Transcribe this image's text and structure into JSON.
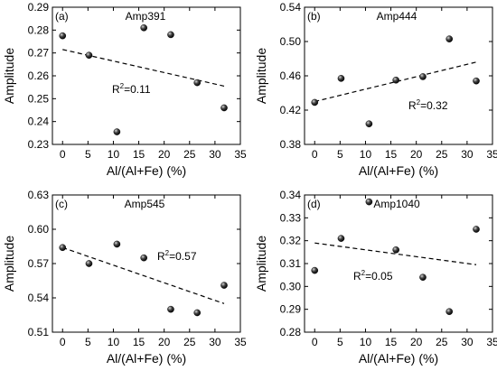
{
  "chart_data": [
    {
      "type": "scatter",
      "panel_label": "(a)",
      "series_name": "Amp391",
      "xlabel": "Al/(Al+Fe) (%)",
      "ylabel": "Amplitude",
      "xlim": [
        -2,
        35
      ],
      "ylim": [
        0.23,
        0.29
      ],
      "xticks": [
        0,
        5,
        10,
        15,
        20,
        25,
        30,
        35
      ],
      "yticks": [
        "0.23",
        "0.24",
        "0.25",
        "0.26",
        "0.27",
        "0.28",
        "0.29"
      ],
      "points": [
        {
          "x": 0,
          "y": 0.2775
        },
        {
          "x": 5.2,
          "y": 0.269
        },
        {
          "x": 10.7,
          "y": 0.2355
        },
        {
          "x": 16,
          "y": 0.281
        },
        {
          "x": 21.3,
          "y": 0.278
        },
        {
          "x": 26.5,
          "y": 0.257
        },
        {
          "x": 31.8,
          "y": 0.246
        }
      ],
      "fit": {
        "x": [
          0,
          31.8
        ],
        "y": [
          0.2715,
          0.2555
        ],
        "style": "dashed"
      },
      "r2_prefix": "R",
      "r2_exp": "2",
      "r2_value": "=0.11"
    },
    {
      "type": "scatter",
      "panel_label": "(b)",
      "series_name": "Amp444",
      "xlabel": "Al/(Al+Fe) (%)",
      "ylabel": "Amplitude",
      "xlim": [
        -2,
        35
      ],
      "ylim": [
        0.38,
        0.54
      ],
      "xticks": [
        0,
        5,
        10,
        15,
        20,
        25,
        30,
        35
      ],
      "yticks": [
        "0.38",
        "0.42",
        "0.46",
        "0.50",
        "0.54"
      ],
      "points": [
        {
          "x": 0,
          "y": 0.429
        },
        {
          "x": 5.2,
          "y": 0.457
        },
        {
          "x": 10.7,
          "y": 0.404
        },
        {
          "x": 16,
          "y": 0.455
        },
        {
          "x": 21.3,
          "y": 0.459
        },
        {
          "x": 26.5,
          "y": 0.503
        },
        {
          "x": 31.8,
          "y": 0.454
        }
      ],
      "fit": {
        "x": [
          0,
          31.8
        ],
        "y": [
          0.43,
          0.476
        ],
        "style": "dashed"
      },
      "r2_prefix": "R",
      "r2_exp": "2",
      "r2_value": "=0.32"
    },
    {
      "type": "scatter",
      "panel_label": "(c)",
      "series_name": "Amp545",
      "xlabel": "Al/(Al+Fe) (%)",
      "ylabel": "Amplitude",
      "xlim": [
        -2,
        35
      ],
      "ylim": [
        0.51,
        0.63
      ],
      "xticks": [
        0,
        5,
        10,
        15,
        20,
        25,
        30,
        35
      ],
      "yticks": [
        "0.51",
        "0.54",
        "0.57",
        "0.60",
        "0.63"
      ],
      "points": [
        {
          "x": 0,
          "y": 0.584
        },
        {
          "x": 5.2,
          "y": 0.57
        },
        {
          "x": 10.7,
          "y": 0.587
        },
        {
          "x": 16,
          "y": 0.575
        },
        {
          "x": 21.3,
          "y": 0.53
        },
        {
          "x": 26.5,
          "y": 0.527
        },
        {
          "x": 31.8,
          "y": 0.551
        }
      ],
      "fit": {
        "x": [
          0,
          31.8
        ],
        "y": [
          0.584,
          0.535
        ],
        "style": "dashed"
      },
      "r2_prefix": "R",
      "r2_exp": "2",
      "r2_value": "=0.57"
    },
    {
      "type": "scatter",
      "panel_label": "(d)",
      "series_name": "Amp1040",
      "xlabel": "Al/(Al+Fe) (%)",
      "ylabel": "Amplitude",
      "xlim": [
        -2,
        35
      ],
      "ylim": [
        0.28,
        0.34
      ],
      "xticks": [
        0,
        5,
        10,
        15,
        20,
        25,
        30,
        35
      ],
      "yticks": [
        "0.28",
        "0.29",
        "0.30",
        "0.31",
        "0.32",
        "0.33",
        "0.34"
      ],
      "points": [
        {
          "x": 0,
          "y": 0.307
        },
        {
          "x": 5.2,
          "y": 0.321
        },
        {
          "x": 10.7,
          "y": 0.337
        },
        {
          "x": 16,
          "y": 0.316
        },
        {
          "x": 21.3,
          "y": 0.304
        },
        {
          "x": 26.5,
          "y": 0.289
        },
        {
          "x": 31.8,
          "y": 0.325
        }
      ],
      "fit": {
        "x": [
          0,
          31.8
        ],
        "y": [
          0.319,
          0.3095
        ],
        "style": "dashed"
      },
      "r2_prefix": "R",
      "r2_exp": "2",
      "r2_value": "=0.05"
    }
  ]
}
